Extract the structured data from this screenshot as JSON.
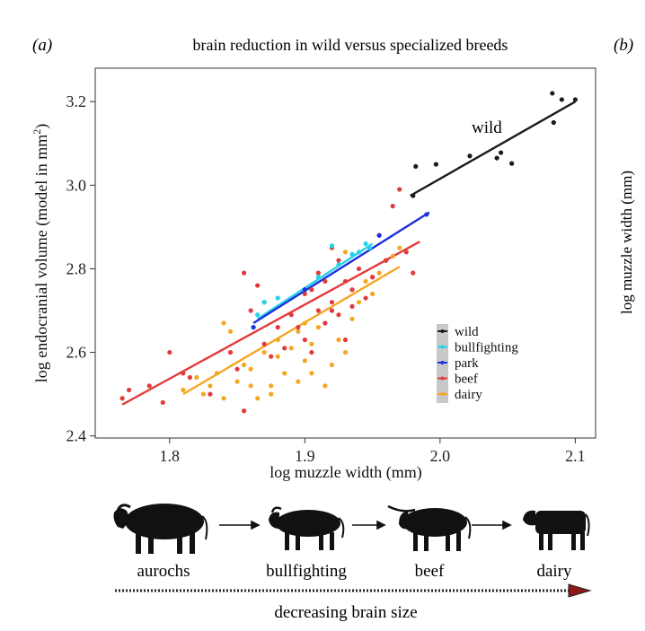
{
  "panel_a_label": "(a)",
  "panel_b_label": "(b)",
  "panel_b_ylabel": "log muzzle width (mm)",
  "chart_data": {
    "type": "scatter",
    "title": "brain reduction in wild versus specialized breeds",
    "xlabel": "log muzzle width (mm)",
    "ylabel": "log endocranial volume (model in mm",
    "ylabel_sup": "2",
    "ylabel_close": ")",
    "xlim": [
      1.745,
      2.115
    ],
    "ylim": [
      2.395,
      3.28
    ],
    "xticks": [
      "1.8",
      "1.9",
      "2.0",
      "2.1"
    ],
    "yticks": [
      "2.4",
      "2.6",
      "2.8",
      "3.0",
      "3.2"
    ],
    "grid": false,
    "legend_position": "lower-right",
    "annotation": "wild",
    "series": [
      {
        "name": "wild",
        "color": "#1a1a1a",
        "points": [
          [
            1.98,
            2.975
          ],
          [
            1.982,
            3.045
          ],
          [
            1.997,
            3.05
          ],
          [
            2.022,
            3.07
          ],
          [
            2.042,
            3.065
          ],
          [
            2.045,
            3.078
          ],
          [
            2.053,
            3.052
          ],
          [
            2.083,
            3.22
          ],
          [
            2.084,
            3.15
          ],
          [
            2.09,
            3.205
          ],
          [
            2.1,
            3.205
          ]
        ],
        "fit": [
          [
            1.978,
            2.975
          ],
          [
            2.1,
            3.2
          ]
        ]
      },
      {
        "name": "bullfighting",
        "color": "#22d3e8",
        "points": [
          [
            1.865,
            2.69
          ],
          [
            1.87,
            2.72
          ],
          [
            1.88,
            2.73
          ],
          [
            1.9,
            2.75
          ],
          [
            1.91,
            2.78
          ],
          [
            1.925,
            2.81
          ],
          [
            1.92,
            2.855
          ],
          [
            1.935,
            2.835
          ],
          [
            1.94,
            2.84
          ],
          [
            1.945,
            2.86
          ],
          [
            1.948,
            2.85
          ]
        ],
        "fit": [
          [
            1.865,
            2.68
          ],
          [
            1.95,
            2.86
          ]
        ]
      },
      {
        "name": "park",
        "color": "#1f2fe0",
        "points": [
          [
            1.862,
            2.66
          ],
          [
            1.9,
            2.75
          ],
          [
            1.955,
            2.88
          ],
          [
            1.99,
            2.93
          ]
        ],
        "fit": [
          [
            1.862,
            2.67
          ],
          [
            1.992,
            2.935
          ]
        ]
      },
      {
        "name": "beef",
        "color": "#e23b3b",
        "points": [
          [
            1.765,
            2.49
          ],
          [
            1.77,
            2.51
          ],
          [
            1.785,
            2.52
          ],
          [
            1.795,
            2.48
          ],
          [
            1.8,
            2.6
          ],
          [
            1.81,
            2.55
          ],
          [
            1.815,
            2.54
          ],
          [
            1.83,
            2.5
          ],
          [
            1.85,
            2.56
          ],
          [
            1.855,
            2.46
          ],
          [
            1.855,
            2.79
          ],
          [
            1.86,
            2.7
          ],
          [
            1.865,
            2.76
          ],
          [
            1.87,
            2.72
          ],
          [
            1.87,
            2.62
          ],
          [
            1.88,
            2.66
          ],
          [
            1.89,
            2.69
          ],
          [
            1.895,
            2.66
          ],
          [
            1.9,
            2.74
          ],
          [
            1.905,
            2.75
          ],
          [
            1.91,
            2.7
          ],
          [
            1.91,
            2.79
          ],
          [
            1.915,
            2.77
          ],
          [
            1.92,
            2.72
          ],
          [
            1.92,
            2.85
          ],
          [
            1.925,
            2.82
          ],
          [
            1.93,
            2.77
          ],
          [
            1.935,
            2.75
          ],
          [
            1.94,
            2.8
          ],
          [
            1.945,
            2.73
          ],
          [
            1.95,
            2.78
          ],
          [
            1.955,
            2.88
          ],
          [
            1.96,
            2.82
          ],
          [
            1.965,
            2.95
          ],
          [
            1.97,
            2.99
          ],
          [
            1.975,
            2.84
          ],
          [
            1.98,
            2.79
          ],
          [
            1.875,
            2.59
          ],
          [
            1.885,
            2.61
          ],
          [
            1.9,
            2.63
          ],
          [
            1.915,
            2.67
          ],
          [
            1.925,
            2.69
          ],
          [
            1.935,
            2.71
          ],
          [
            1.95,
            2.78
          ],
          [
            1.96,
            2.82
          ],
          [
            1.845,
            2.6
          ],
          [
            1.92,
            2.7
          ],
          [
            1.93,
            2.63
          ],
          [
            1.905,
            2.6
          ]
        ],
        "fit": [
          [
            1.765,
            2.475
          ],
          [
            1.985,
            2.865
          ]
        ]
      },
      {
        "name": "dairy",
        "color": "#f5a623",
        "points": [
          [
            1.81,
            2.51
          ],
          [
            1.82,
            2.54
          ],
          [
            1.825,
            2.5
          ],
          [
            1.83,
            2.52
          ],
          [
            1.835,
            2.55
          ],
          [
            1.84,
            2.49
          ],
          [
            1.84,
            2.67
          ],
          [
            1.845,
            2.6
          ],
          [
            1.85,
            2.53
          ],
          [
            1.855,
            2.57
          ],
          [
            1.86,
            2.56
          ],
          [
            1.865,
            2.49
          ],
          [
            1.87,
            2.6
          ],
          [
            1.875,
            2.52
          ],
          [
            1.88,
            2.59
          ],
          [
            1.885,
            2.55
          ],
          [
            1.89,
            2.61
          ],
          [
            1.895,
            2.65
          ],
          [
            1.9,
            2.58
          ],
          [
            1.905,
            2.62
          ],
          [
            1.91,
            2.66
          ],
          [
            1.915,
            2.52
          ],
          [
            1.92,
            2.7
          ],
          [
            1.925,
            2.63
          ],
          [
            1.93,
            2.84
          ],
          [
            1.935,
            2.68
          ],
          [
            1.94,
            2.72
          ],
          [
            1.945,
            2.77
          ],
          [
            1.95,
            2.74
          ],
          [
            1.955,
            2.79
          ],
          [
            1.96,
            2.82
          ],
          [
            1.965,
            2.83
          ],
          [
            1.97,
            2.85
          ],
          [
            1.86,
            2.52
          ],
          [
            1.875,
            2.5
          ],
          [
            1.895,
            2.53
          ],
          [
            1.905,
            2.55
          ],
          [
            1.92,
            2.57
          ],
          [
            1.93,
            2.6
          ],
          [
            1.845,
            2.65
          ],
          [
            1.88,
            2.63
          ],
          [
            1.9,
            2.67
          ]
        ],
        "fit": [
          [
            1.81,
            2.5
          ],
          [
            1.97,
            2.805
          ]
        ]
      }
    ]
  },
  "illustration": {
    "stages": [
      "aurochs",
      "bullfighting",
      "beef",
      "dairy"
    ],
    "arrow_caption": "decreasing brain size"
  }
}
